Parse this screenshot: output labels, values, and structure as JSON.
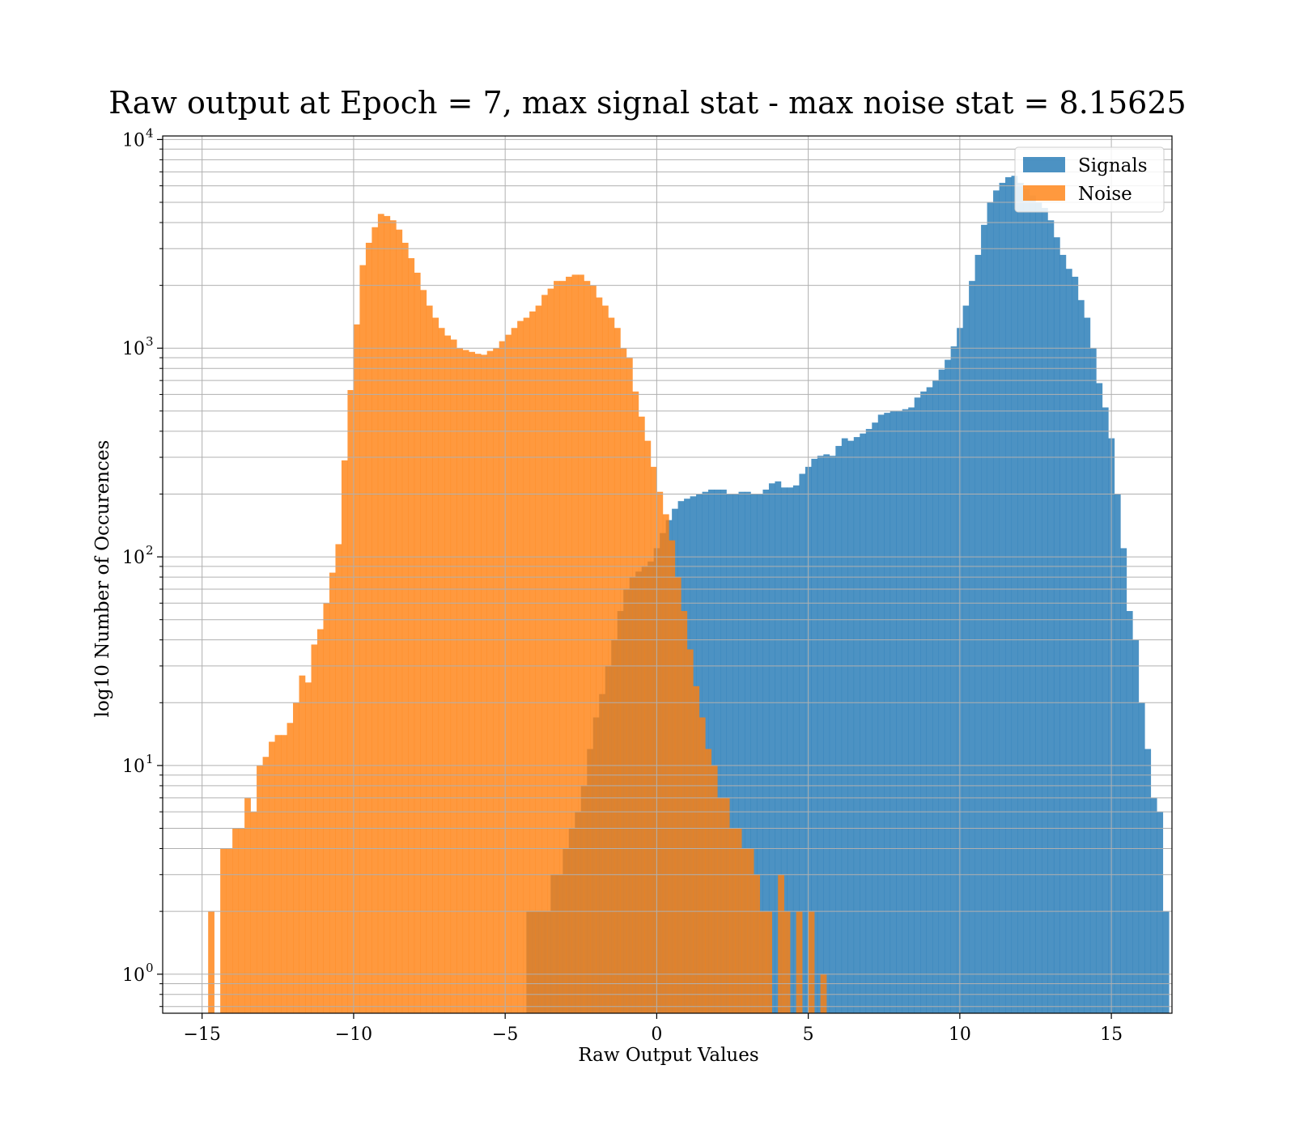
{
  "chart_data": {
    "type": "bar",
    "title": "Raw output at Epoch = 7, max signal stat - max noise stat = 8.15625",
    "xlabel": "Raw Output Values",
    "ylabel": "log10 Number of Occurences",
    "xlim": [
      -16.3,
      17.0
    ],
    "ylim": [
      0.65,
      10400
    ],
    "yscale": "log",
    "grid": true,
    "legend_position": "top-right",
    "x_ticks": [
      -15,
      -10,
      -5,
      0,
      5,
      10,
      15
    ],
    "x_tick_labels": [
      "−15",
      "−10",
      "−5",
      "0",
      "5",
      "10",
      "15"
    ],
    "y_ticks": [
      {
        "value": 1,
        "base": "10",
        "exp": "0"
      },
      {
        "value": 10,
        "base": "10",
        "exp": "1"
      },
      {
        "value": 100,
        "base": "10",
        "exp": "2"
      },
      {
        "value": 1000,
        "base": "10",
        "exp": "3"
      },
      {
        "value": 10000,
        "base": "10",
        "exp": "4"
      }
    ],
    "series": [
      {
        "name": "Signals",
        "color": "#1f77b4",
        "bin_start": -4.3,
        "bin_width": 0.2,
        "counts": [
          2,
          2,
          2,
          2,
          3,
          3,
          4,
          5,
          6,
          8,
          12,
          17,
          22,
          30,
          40,
          55,
          70,
          80,
          85,
          90,
          95,
          110,
          130,
          150,
          170,
          185,
          190,
          195,
          200,
          205,
          210,
          210,
          210,
          200,
          200,
          205,
          205,
          200,
          200,
          210,
          225,
          230,
          215,
          215,
          220,
          250,
          270,
          295,
          305,
          310,
          305,
          340,
          370,
          360,
          375,
          390,
          410,
          440,
          480,
          490,
          500,
          500,
          510,
          520,
          580,
          620,
          650,
          700,
          790,
          880,
          1020,
          1250,
          1600,
          2100,
          2800,
          3900,
          5000,
          5700,
          6200,
          6600,
          6700,
          6200,
          5800,
          5400,
          5000,
          4700,
          4100,
          3400,
          2800,
          2400,
          2200,
          1700,
          1400,
          1000,
          680,
          520,
          370,
          200,
          110,
          55,
          40,
          20,
          12,
          7,
          6,
          2
        ]
      },
      {
        "name": "Noise",
        "color": "#ff7f0e",
        "bin_start": -14.8,
        "bin_width": 0.2,
        "counts": [
          2,
          0,
          4,
          4,
          5,
          5,
          7,
          6,
          10,
          11,
          13,
          14,
          14,
          16,
          20,
          27,
          25,
          38,
          45,
          60,
          84,
          115,
          290,
          630,
          1300,
          2500,
          3200,
          3800,
          4400,
          4300,
          4100,
          3700,
          3200,
          2700,
          2300,
          1900,
          1600,
          1400,
          1250,
          1150,
          1100,
          1000,
          980,
          960,
          940,
          930,
          970,
          1000,
          1080,
          1160,
          1250,
          1350,
          1400,
          1500,
          1600,
          1800,
          1930,
          2100,
          2100,
          2200,
          2250,
          2250,
          2100,
          2000,
          1750,
          1600,
          1400,
          1250,
          1000,
          900,
          620,
          470,
          360,
          270,
          205,
          160,
          120,
          80,
          55,
          36,
          24,
          17,
          12,
          10,
          7,
          7,
          5,
          5,
          4,
          4,
          3,
          2,
          2,
          0,
          3,
          2,
          0,
          2,
          0,
          2,
          0,
          1
        ]
      }
    ]
  }
}
